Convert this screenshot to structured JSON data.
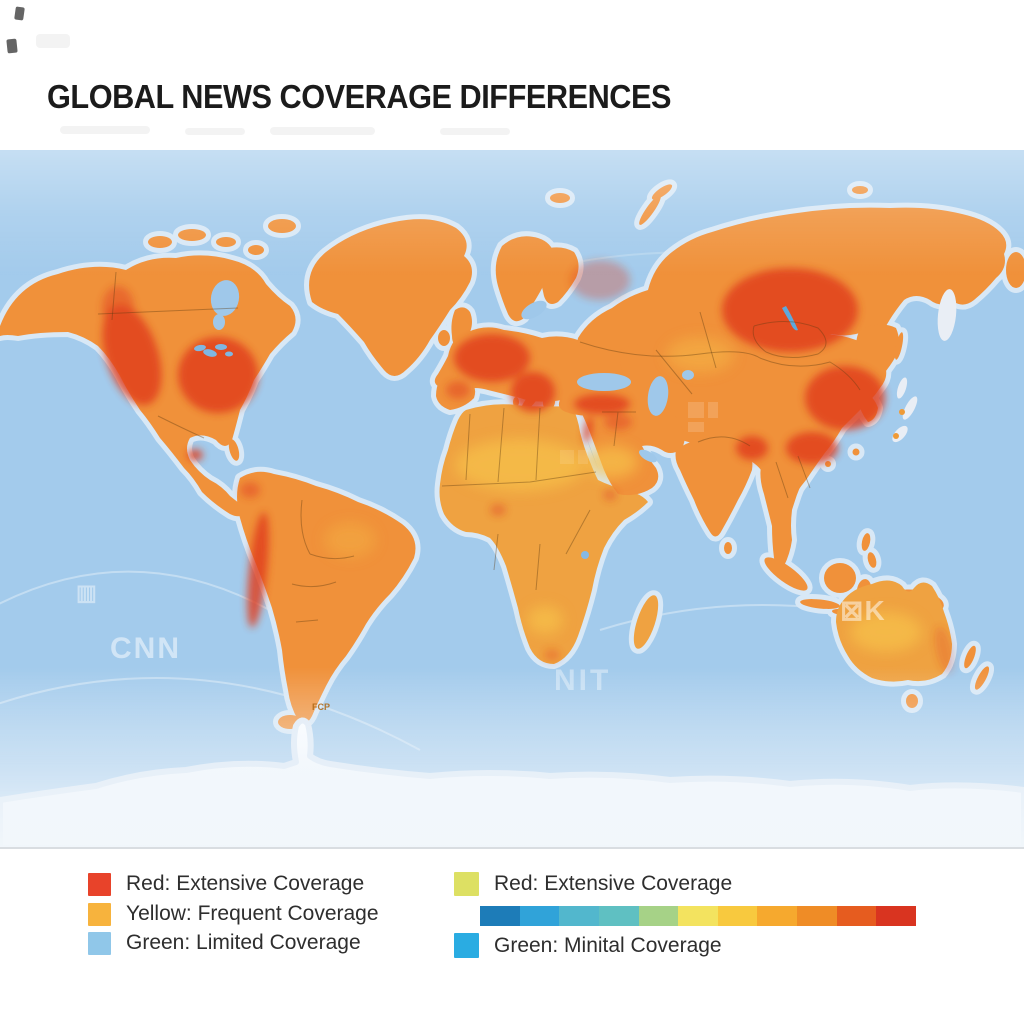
{
  "title": "GLOBAL NEWS COVERAGE DIFFERENCES",
  "map": {
    "ocean_color": "#a3cbec",
    "land_color": "#f0913a",
    "land_warm_color": "#efa241",
    "land_light_color": "#f7c34c",
    "hotspot_color": "#e03c1e",
    "antarctica_color": "#fbfdff",
    "watermarks": {
      "cnn": "CNN",
      "nit": "NIT",
      "xk": "⊠K",
      "box": "▥",
      "fcp": "FCP"
    }
  },
  "legend": {
    "left": [
      {
        "label": "Red: Extensive Coverage",
        "color": "#e8432a"
      },
      {
        "label": "Yellow: Frequent Coverage",
        "color": "#f7b33d"
      },
      {
        "label": "Green: Limited Coverage",
        "color": "#90c7e9"
      }
    ],
    "right": {
      "top": {
        "label": "Red: Extensive Coverage",
        "color": "#dde063"
      },
      "bottom": {
        "label": "Green: Minital Coverage",
        "color": "#2aace2"
      },
      "gradient": [
        "#1d7cb8",
        "#30a3d9",
        "#52b7cd",
        "#5fc0c2",
        "#a6d287",
        "#f3e35f",
        "#f8c93e",
        "#f6a92e",
        "#ef8c26",
        "#e65c1f",
        "#d93420"
      ]
    }
  }
}
